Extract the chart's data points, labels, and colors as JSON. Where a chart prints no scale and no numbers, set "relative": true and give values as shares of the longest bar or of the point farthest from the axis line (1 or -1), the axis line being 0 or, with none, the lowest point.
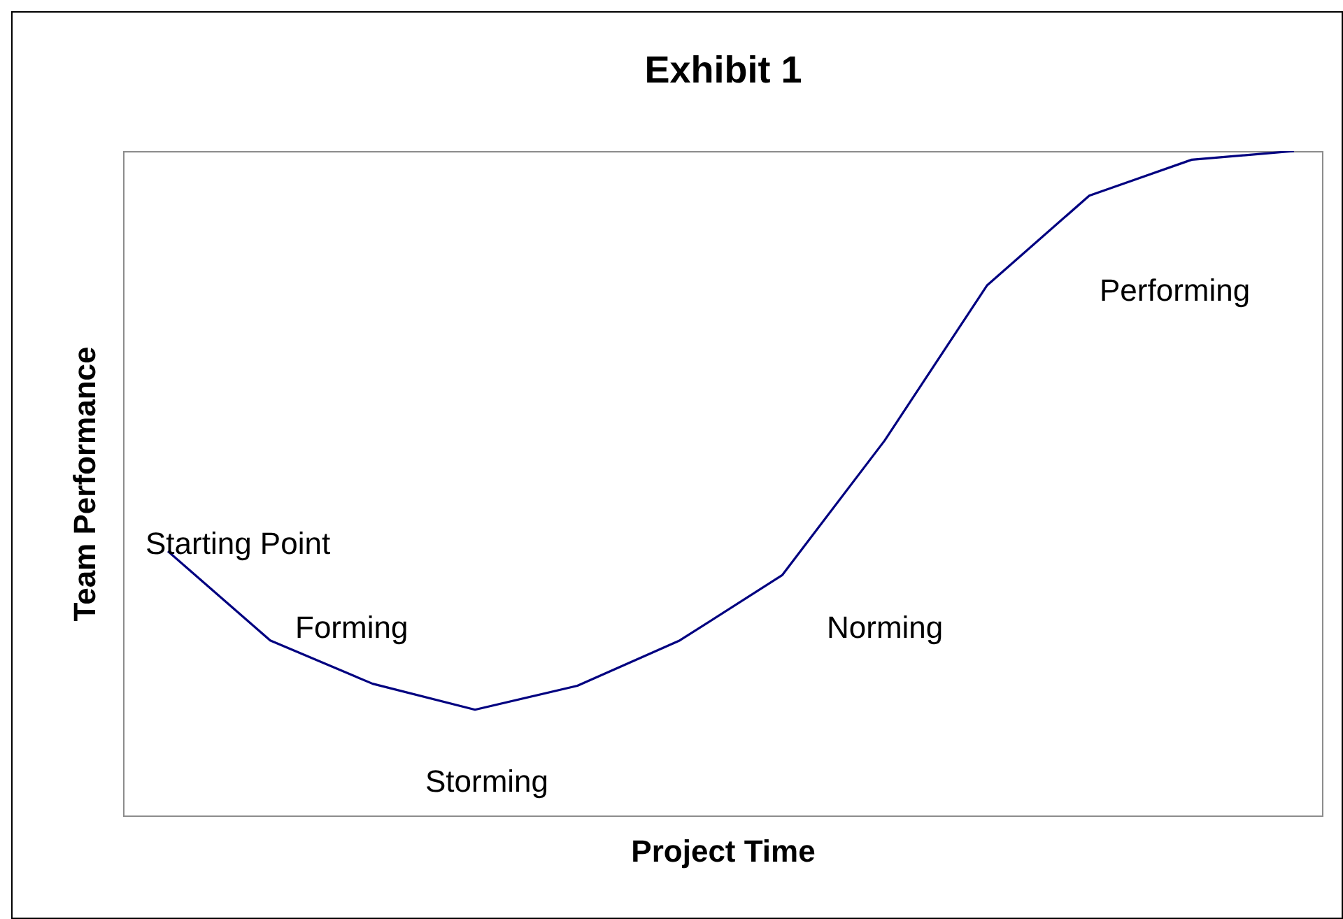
{
  "chart_data": {
    "type": "line",
    "title": "Exhibit 1",
    "xlabel": "Project Time",
    "ylabel": "Team Performance",
    "relative": true,
    "categories": [
      null,
      null,
      null,
      null,
      null,
      null,
      null,
      null,
      null,
      null,
      null,
      null
    ],
    "series": [
      {
        "color": "#000080",
        "values": [
          0.399,
          0.265,
          0.2,
          0.161,
          0.197,
          0.265,
          0.363,
          0.565,
          0.798,
          0.933,
          0.987,
          1
        ]
      }
    ],
    "annotations": [
      "Starting Point",
      "Forming",
      "Storming",
      "Norming",
      "Performing"
    ],
    "grid": false,
    "legend": false,
    "marker": "none",
    "line_style": "solid"
  }
}
